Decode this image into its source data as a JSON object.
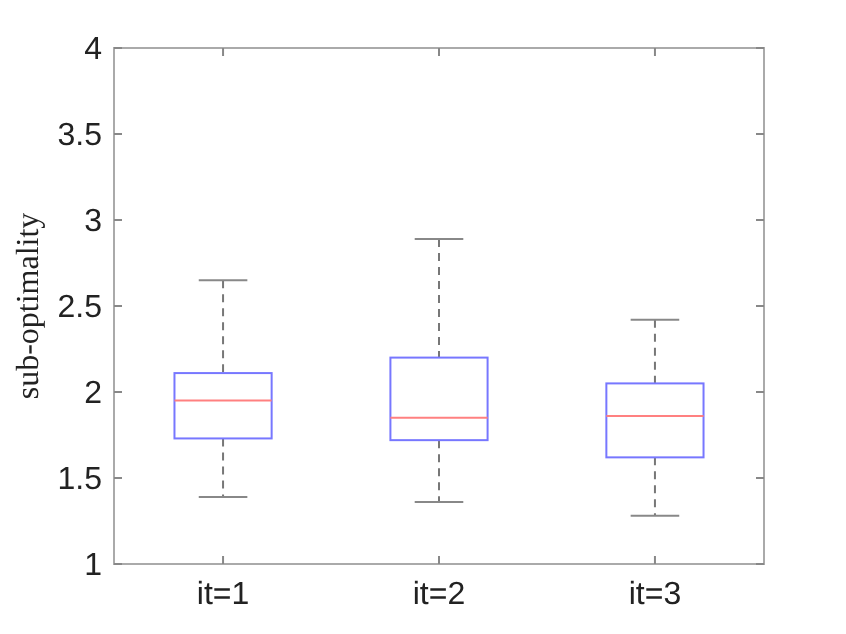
{
  "chart_data": {
    "type": "box",
    "ylabel": "sub-optimality",
    "categories": [
      "it=1",
      "it=2",
      "it=3"
    ],
    "series": [
      {
        "color": "#7777ff",
        "boxes": [
          {
            "low": 1.39,
            "q1": 1.73,
            "median": 1.95,
            "q3": 2.11,
            "high": 2.65
          },
          {
            "low": 1.36,
            "q1": 1.72,
            "median": 1.85,
            "q3": 2.2,
            "high": 2.89
          },
          {
            "low": 1.28,
            "q1": 1.62,
            "median": 1.86,
            "q3": 2.05,
            "high": 2.42
          }
        ]
      }
    ],
    "ylim": [
      1,
      4
    ],
    "yticks": [
      1,
      1.5,
      2,
      2.5,
      3,
      3.5,
      4
    ],
    "grid": false
  }
}
